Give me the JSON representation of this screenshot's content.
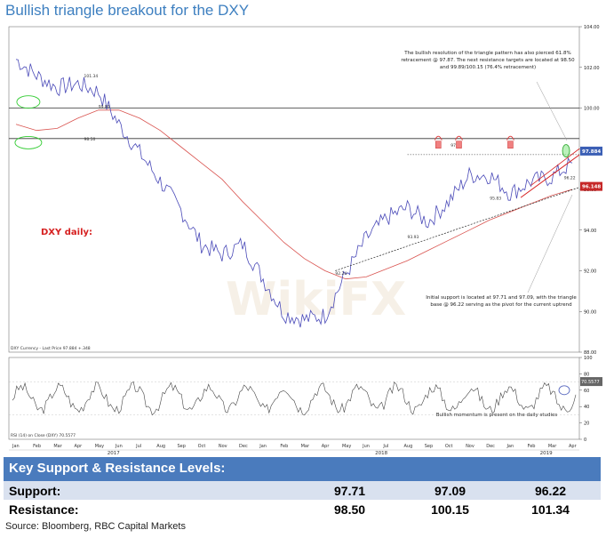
{
  "title": "Bullish triangle breakout for the DXY",
  "watermark": "WikiFX",
  "chart_data": {
    "type": "line",
    "x_months": [
      "Jan",
      "Feb",
      "Mar",
      "Apr",
      "May",
      "Jun",
      "Jul",
      "Aug",
      "Sep",
      "Oct",
      "Nov",
      "Dec",
      "Jan",
      "Feb",
      "Mar",
      "Apr",
      "May",
      "Jun",
      "Jul",
      "Aug",
      "Sep",
      "Oct",
      "Nov",
      "Dec",
      "Jan",
      "Feb",
      "Mar",
      "Apr"
    ],
    "x_years": [
      "2017",
      "2018",
      "2019"
    ],
    "ylim": [
      88,
      104
    ],
    "y_ticks": [
      "104.00",
      "102.00",
      "100.00",
      "98.00",
      "96.00",
      "94.00",
      "92.00",
      "90.00",
      "88.00"
    ],
    "series": [
      {
        "name": "DXY Currency - Last Price 97.884 +.348",
        "values": [
          102.4,
          101.6,
          101.0,
          101.2,
          100.8,
          99.2,
          97.8,
          96.4,
          95.0,
          93.3,
          92.8,
          93.3,
          91.6,
          89.9,
          89.6,
          89.8,
          91.8,
          93.6,
          94.6,
          95.1,
          94.4,
          95.4,
          96.7,
          96.7,
          95.8,
          96.4,
          96.6,
          97.3
        ]
      }
    ],
    "price_labels": [
      "101.34",
      "99.89",
      "98.50",
      "97.71",
      "96.22",
      "95.83",
      "93.93",
      "92.24"
    ],
    "right_axis_markers": [
      "97.884",
      "96.148"
    ],
    "annotations": {
      "dxy_label": "DXY daily:",
      "top_note": "The bullish resolution of the triangle pattern has also pierced 61.8% retracement @ 97.87. The next resistance targets are located at 98.50 and 99.89/100.15 (76.4% retracement)",
      "mid_note": "Initial support is located at 97.71 and 97.09, with the triangle base @ 96.22 serving as the pivot for the current uptrend",
      "rsi_note": "Bullish momentum is present on the daily studies"
    },
    "rsi": {
      "legend": "RSI (14) on Close (DXY) 70.5577",
      "ylim": [
        0,
        100
      ],
      "ticks": [
        "100",
        "80",
        "60",
        "40",
        "20",
        "0"
      ],
      "marker": "70.5577"
    }
  },
  "levels_table": {
    "header": "Key Support & Resistance Levels:",
    "rows": [
      {
        "label": "Support:",
        "v1": "97.71",
        "v2": "97.09",
        "v3": "96.22"
      },
      {
        "label": "Resistance:",
        "v1": "98.50",
        "v2": "100.15",
        "v3": "101.34"
      }
    ]
  },
  "source": "Source: Bloomberg, RBC Capital Markets"
}
